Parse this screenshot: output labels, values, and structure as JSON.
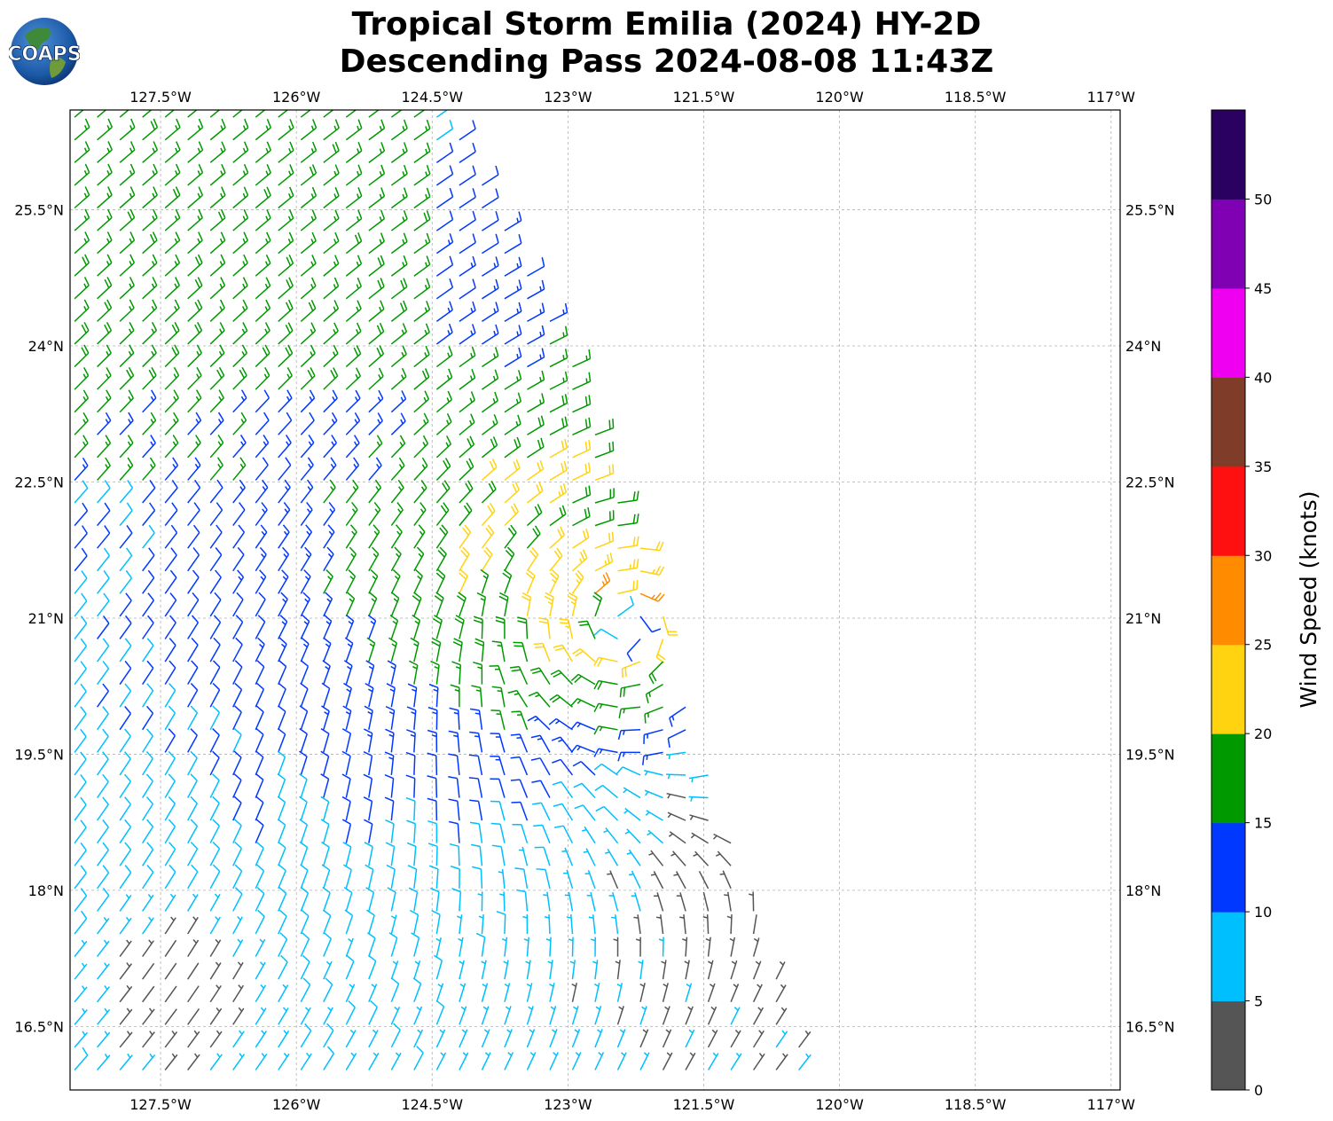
{
  "title": {
    "line1": "Tropical Storm Emilia (2024) HY-2D",
    "line2": "Descending Pass 2024-08-08 11:43Z"
  },
  "logo": {
    "text": "COAPS",
    "icon": "globe-logo"
  },
  "map": {
    "lon_range": [
      -128.5,
      -116.9
    ],
    "lat_range": [
      15.8,
      26.6
    ],
    "lon_ticks": [
      {
        "v": -127.5,
        "label": "127.5°W"
      },
      {
        "v": -126.0,
        "label": "126°W"
      },
      {
        "v": -124.5,
        "label": "124.5°W"
      },
      {
        "v": -123.0,
        "label": "123°W"
      },
      {
        "v": -121.5,
        "label": "121.5°W"
      },
      {
        "v": -120.0,
        "label": "120°W"
      },
      {
        "v": -118.5,
        "label": "118.5°W"
      },
      {
        "v": -117.0,
        "label": "117°W"
      }
    ],
    "lat_ticks": [
      {
        "v": 25.5,
        "label": "25.5°N"
      },
      {
        "v": 24.0,
        "label": "24°N"
      },
      {
        "v": 22.5,
        "label": "22.5°N"
      },
      {
        "v": 21.0,
        "label": "21°N"
      },
      {
        "v": 19.5,
        "label": "19.5°N"
      },
      {
        "v": 18.0,
        "label": "18°N"
      },
      {
        "v": 16.5,
        "label": "16.5°N"
      }
    ],
    "grid": true
  },
  "wind_field": {
    "storm_center": {
      "lon": -122.4,
      "lat": 20.95
    },
    "swath_right_edge": [
      {
        "lat": 26.6,
        "lon": -124.3
      },
      {
        "lat": 24.0,
        "lon": -123.0
      },
      {
        "lat": 21.0,
        "lon": -121.9
      },
      {
        "lat": 19.5,
        "lon": -121.5
      },
      {
        "lat": 15.8,
        "lon": -120.2
      }
    ],
    "spacing_deg": 0.25
  },
  "colorbar": {
    "label": "Wind Speed (knots)",
    "ticks": [
      "0",
      "5",
      "10",
      "15",
      "20",
      "25",
      "30",
      "35",
      "40",
      "45",
      "50"
    ],
    "bins": [
      {
        "from": 0,
        "to": 5,
        "color": "#555555"
      },
      {
        "from": 5,
        "to": 10,
        "color": "#00bfff"
      },
      {
        "from": 10,
        "to": 15,
        "color": "#0038ff"
      },
      {
        "from": 15,
        "to": 20,
        "color": "#009900"
      },
      {
        "from": 20,
        "to": 25,
        "color": "#ffd310"
      },
      {
        "from": 25,
        "to": 30,
        "color": "#ff8c00"
      },
      {
        "from": 30,
        "to": 35,
        "color": "#ff1010"
      },
      {
        "from": 35,
        "to": 40,
        "color": "#7f3c28"
      },
      {
        "from": 40,
        "to": 45,
        "color": "#f000f0"
      },
      {
        "from": 45,
        "to": 50,
        "color": "#8000b4"
      },
      {
        "from": 50,
        "to": 55,
        "color": "#2a0060"
      }
    ],
    "max": 55
  }
}
